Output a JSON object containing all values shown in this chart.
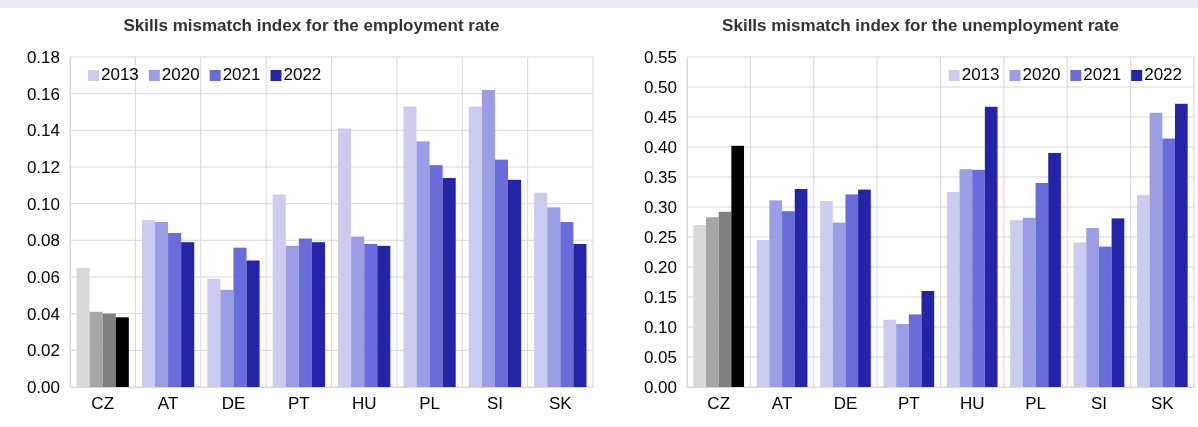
{
  "chart_data": [
    {
      "type": "bar",
      "title": "Skills mismatch index for the employment rate",
      "categories": [
        "CZ",
        "AT",
        "DE",
        "PT",
        "HU",
        "PL",
        "SI",
        "SK"
      ],
      "series": [
        {
          "name": "2013",
          "color": "#ccccf0",
          "colors": [
            "#d9d9d9",
            "#ccccf0",
            "#ccccf0",
            "#ccccf0",
            "#ccccf0",
            "#ccccf0",
            "#ccccf0",
            "#ccccf0"
          ],
          "values": [
            0.065,
            0.091,
            0.059,
            0.105,
            0.141,
            0.153,
            0.153,
            0.106
          ]
        },
        {
          "name": "2020",
          "color": "#9b9de6",
          "colors": [
            "#a6a6a6",
            "#9b9de6",
            "#9b9de6",
            "#9b9de6",
            "#9b9de6",
            "#9b9de6",
            "#9b9de6",
            "#9b9de6"
          ],
          "values": [
            0.041,
            0.09,
            0.053,
            0.077,
            0.082,
            0.134,
            0.162,
            0.098
          ]
        },
        {
          "name": "2021",
          "color": "#6a6cdc",
          "colors": [
            "#808080",
            "#6a6cdc",
            "#6a6cdc",
            "#6a6cdc",
            "#6a6cdc",
            "#6a6cdc",
            "#6a6cdc",
            "#6a6cdc"
          ],
          "values": [
            0.04,
            0.084,
            0.076,
            0.081,
            0.078,
            0.121,
            0.124,
            0.09
          ]
        },
        {
          "name": "2022",
          "color": "#2424a8",
          "colors": [
            "#000000",
            "#2424a8",
            "#2424a8",
            "#2424a8",
            "#2424a8",
            "#2424a8",
            "#2424a8",
            "#2424a8"
          ],
          "values": [
            0.038,
            0.079,
            0.069,
            0.079,
            0.077,
            0.114,
            0.113,
            0.078
          ]
        }
      ],
      "ylim": [
        0,
        0.18
      ],
      "yticks": [
        {
          "value": 0,
          "label": "0.00"
        },
        {
          "value": 0.02,
          "label": "0.02"
        },
        {
          "value": 0.04,
          "label": "0.04"
        },
        {
          "value": 0.06,
          "label": "0.06"
        },
        {
          "value": 0.08,
          "label": "0.08"
        },
        {
          "value": 0.1,
          "label": "0.10"
        },
        {
          "value": 0.12,
          "label": "0.12"
        },
        {
          "value": 0.14,
          "label": "0.14"
        },
        {
          "value": 0.16,
          "label": "0.16"
        },
        {
          "value": 0.18,
          "label": "0.18"
        }
      ],
      "grid": true,
      "legend": "top left"
    },
    {
      "type": "bar",
      "title": "Skills mismatch index for the unemployment rate",
      "categories": [
        "CZ",
        "AT",
        "DE",
        "PT",
        "HU",
        "PL",
        "SI",
        "SK"
      ],
      "series": [
        {
          "name": "2013",
          "color": "#ccccf0",
          "colors": [
            "#d9d9d9",
            "#ccccf0",
            "#ccccf0",
            "#ccccf0",
            "#ccccf0",
            "#ccccf0",
            "#ccccf0",
            "#ccccf0"
          ],
          "values": [
            0.27,
            0.245,
            0.31,
            0.112,
            0.325,
            0.278,
            0.241,
            0.32
          ]
        },
        {
          "name": "2020",
          "color": "#9b9de6",
          "colors": [
            "#a6a6a6",
            "#9b9de6",
            "#9b9de6",
            "#9b9de6",
            "#9b9de6",
            "#9b9de6",
            "#9b9de6",
            "#9b9de6"
          ],
          "values": [
            0.283,
            0.311,
            0.274,
            0.105,
            0.363,
            0.282,
            0.265,
            0.457
          ]
        },
        {
          "name": "2021",
          "color": "#6a6cdc",
          "colors": [
            "#808080",
            "#6a6cdc",
            "#6a6cdc",
            "#6a6cdc",
            "#6a6cdc",
            "#6a6cdc",
            "#6a6cdc",
            "#6a6cdc"
          ],
          "values": [
            0.292,
            0.293,
            0.321,
            0.121,
            0.362,
            0.34,
            0.234,
            0.414
          ]
        },
        {
          "name": "2022",
          "color": "#2424a8",
          "colors": [
            "#000000",
            "#2424a8",
            "#2424a8",
            "#2424a8",
            "#2424a8",
            "#2424a8",
            "#2424a8",
            "#2424a8"
          ],
          "values": [
            0.402,
            0.33,
            0.329,
            0.16,
            0.467,
            0.39,
            0.281,
            0.472
          ]
        }
      ],
      "ylim": [
        0,
        0.55
      ],
      "yticks": [
        {
          "value": 0,
          "label": "0.00"
        },
        {
          "value": 0.05,
          "label": "0.05"
        },
        {
          "value": 0.1,
          "label": "0.10"
        },
        {
          "value": 0.15,
          "label": "0.15"
        },
        {
          "value": 0.2,
          "label": "0.20"
        },
        {
          "value": 0.25,
          "label": "0.25"
        },
        {
          "value": 0.3,
          "label": "0.30"
        },
        {
          "value": 0.35,
          "label": "0.35"
        },
        {
          "value": 0.4,
          "label": "0.40"
        },
        {
          "value": 0.45,
          "label": "0.45"
        },
        {
          "value": 0.5,
          "label": "0.50"
        },
        {
          "value": 0.55,
          "label": "0.55"
        }
      ],
      "grid": true,
      "legend": "top right"
    }
  ]
}
